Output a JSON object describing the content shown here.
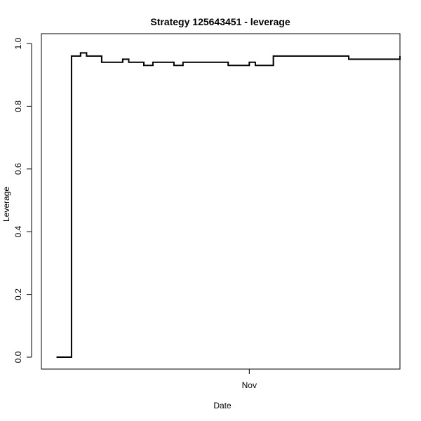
{
  "chart_data": {
    "type": "line",
    "title": "Strategy 125643451 - leverage",
    "xlabel": "Date",
    "ylabel": "Leverage",
    "ylim": [
      0.0,
      1.0
    ],
    "y_ticks": [
      0.0,
      0.2,
      0.4,
      0.6,
      0.8,
      1.0
    ],
    "y_tick_labels": [
      "0.0",
      "0.2",
      "0.4",
      "0.6",
      "0.8",
      "1.0"
    ],
    "x_ticks": [
      {
        "x": 68,
        "label": "Nov"
      }
    ],
    "xlim": [
      -1,
      118
    ],
    "grid": false,
    "step": true,
    "series": [
      {
        "points": [
          {
            "x": 4,
            "y": 0.0
          },
          {
            "x": 9,
            "y": 0.96
          },
          {
            "x": 12,
            "y": 0.97
          },
          {
            "x": 14,
            "y": 0.96
          },
          {
            "x": 19,
            "y": 0.94
          },
          {
            "x": 26,
            "y": 0.95
          },
          {
            "x": 28,
            "y": 0.94
          },
          {
            "x": 33,
            "y": 0.93
          },
          {
            "x": 36,
            "y": 0.94
          },
          {
            "x": 43,
            "y": 0.93
          },
          {
            "x": 46,
            "y": 0.94
          },
          {
            "x": 61,
            "y": 0.93
          },
          {
            "x": 68,
            "y": 0.94
          },
          {
            "x": 70,
            "y": 0.93
          },
          {
            "x": 76,
            "y": 0.96
          },
          {
            "x": 101,
            "y": 0.95
          },
          {
            "x": 118,
            "y": 0.96
          }
        ]
      }
    ]
  }
}
